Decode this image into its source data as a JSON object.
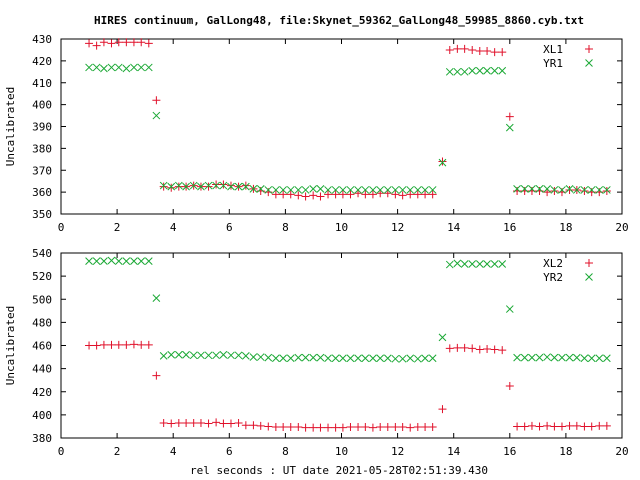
{
  "title": "HIRES continuum, GalLong48, file:Skynet_59362_GalLong48_59985_8860.cyb.txt",
  "xlabel": "rel seconds : UT date 2021-05-28T02:51:39.430",
  "colors": {
    "xl": "#e0102a",
    "yr": "#1aa834"
  },
  "chart_data": [
    {
      "type": "scatter",
      "ylabel": "Uncalibrated",
      "xlim": [
        0,
        20
      ],
      "ylim": [
        350,
        430
      ],
      "xticks": [
        "0",
        "2",
        "4",
        "6",
        "8",
        "10",
        "12",
        "14",
        "16",
        "18",
        "20"
      ],
      "yticks": [
        "350",
        "360",
        "370",
        "380",
        "390",
        "400",
        "410",
        "420",
        "430"
      ],
      "grid": false,
      "legend": "top-right",
      "series": [
        {
          "name": "XL1",
          "marker": "plus",
          "x": [
            1.0,
            1.27,
            1.53,
            1.8,
            2.06,
            2.33,
            2.6,
            2.86,
            3.13,
            3.4,
            3.66,
            3.93,
            4.2,
            4.46,
            4.73,
            4.99,
            5.26,
            5.53,
            5.79,
            6.06,
            6.33,
            6.59,
            6.86,
            7.12,
            7.39,
            7.66,
            7.92,
            8.19,
            8.46,
            8.72,
            8.99,
            9.25,
            9.52,
            9.79,
            10.05,
            10.32,
            10.59,
            10.85,
            11.12,
            11.38,
            11.65,
            11.92,
            12.18,
            12.45,
            12.72,
            12.98,
            13.25,
            13.6,
            13.86,
            14.13,
            14.39,
            14.66,
            14.93,
            15.19,
            15.46,
            15.73,
            16.0,
            16.26,
            16.53,
            16.79,
            17.06,
            17.33,
            17.59,
            17.86,
            18.13,
            18.39,
            18.66,
            18.92,
            19.19,
            19.46
          ],
          "y": [
            428,
            427,
            428.5,
            428,
            428.5,
            428.5,
            428.5,
            428.5,
            428,
            402,
            362.5,
            362,
            362.5,
            362.5,
            363,
            362.5,
            362.5,
            363.5,
            363.5,
            363,
            362.5,
            363,
            361.5,
            360.5,
            360,
            359,
            359,
            359,
            358.5,
            358,
            358.5,
            358,
            359,
            359,
            359,
            359,
            359.5,
            359,
            359,
            359.5,
            359.5,
            359,
            358.5,
            359,
            359,
            359,
            359,
            374,
            425,
            425.5,
            425.5,
            425,
            424.5,
            424.5,
            424,
            424,
            394.5,
            360.5,
            360.5,
            360.5,
            360.5,
            360,
            360.5,
            360,
            361,
            361,
            360.5,
            360,
            360,
            360.5
          ]
        },
        {
          "name": "YR1",
          "marker": "cross",
          "x": [
            1.0,
            1.27,
            1.53,
            1.8,
            2.06,
            2.33,
            2.6,
            2.86,
            3.13,
            3.4,
            3.66,
            3.93,
            4.2,
            4.46,
            4.73,
            4.99,
            5.26,
            5.53,
            5.79,
            6.06,
            6.33,
            6.59,
            6.86,
            7.12,
            7.39,
            7.66,
            7.92,
            8.19,
            8.46,
            8.72,
            8.99,
            9.25,
            9.52,
            9.79,
            10.05,
            10.32,
            10.59,
            10.85,
            11.12,
            11.38,
            11.65,
            11.92,
            12.18,
            12.45,
            12.72,
            12.98,
            13.25,
            13.6,
            13.86,
            14.13,
            14.39,
            14.66,
            14.93,
            15.19,
            15.46,
            15.73,
            16.0,
            16.26,
            16.53,
            16.79,
            17.06,
            17.33,
            17.59,
            17.86,
            18.13,
            18.39,
            18.66,
            18.92,
            19.19,
            19.46
          ],
          "y": [
            417,
            417,
            416.5,
            417,
            417,
            416.5,
            417,
            417,
            417,
            395,
            363,
            362.5,
            363,
            362.5,
            363,
            362.5,
            363,
            363,
            363,
            362.5,
            362.5,
            362.5,
            361.5,
            361.5,
            361,
            361,
            361,
            361,
            361,
            361,
            361.5,
            361.5,
            361,
            361,
            361,
            361,
            361,
            361,
            361,
            361,
            361,
            361,
            361,
            361,
            361,
            361,
            361,
            373.5,
            415,
            415,
            415,
            415.5,
            415.5,
            415.5,
            415.5,
            415.5,
            389.5,
            361.5,
            361.5,
            361.5,
            361.5,
            361.5,
            361,
            361,
            361.5,
            361,
            361,
            361,
            361,
            361
          ]
        }
      ]
    },
    {
      "type": "scatter",
      "ylabel": "Uncalibrated",
      "xlim": [
        0,
        20
      ],
      "ylim": [
        380,
        540
      ],
      "xticks": [
        "0",
        "2",
        "4",
        "6",
        "8",
        "10",
        "12",
        "14",
        "16",
        "18",
        "20"
      ],
      "yticks": [
        "380",
        "400",
        "420",
        "440",
        "460",
        "480",
        "500",
        "520",
        "540"
      ],
      "grid": false,
      "legend": "top-right",
      "series": [
        {
          "name": "XL2",
          "marker": "plus",
          "x": [
            1.0,
            1.27,
            1.53,
            1.8,
            2.06,
            2.33,
            2.6,
            2.86,
            3.13,
            3.4,
            3.66,
            3.93,
            4.2,
            4.46,
            4.73,
            4.99,
            5.26,
            5.53,
            5.79,
            6.06,
            6.33,
            6.59,
            6.86,
            7.12,
            7.39,
            7.66,
            7.92,
            8.19,
            8.46,
            8.72,
            8.99,
            9.25,
            9.52,
            9.79,
            10.05,
            10.32,
            10.59,
            10.85,
            11.12,
            11.38,
            11.65,
            11.92,
            12.18,
            12.45,
            12.72,
            12.98,
            13.25,
            13.6,
            13.86,
            14.13,
            14.39,
            14.66,
            14.93,
            15.19,
            15.46,
            15.73,
            16.0,
            16.26,
            16.53,
            16.79,
            17.06,
            17.33,
            17.59,
            17.86,
            18.13,
            18.39,
            18.66,
            18.92,
            19.19,
            19.46
          ],
          "y": [
            460,
            460,
            460.5,
            460.5,
            460.5,
            460.5,
            461,
            460.5,
            460.5,
            434,
            393,
            392.5,
            393,
            393,
            393,
            393,
            392.5,
            393.5,
            392.5,
            392.5,
            393,
            391,
            391,
            390.5,
            390,
            389.5,
            389.5,
            389.5,
            389.5,
            389,
            389,
            389,
            389,
            389,
            389,
            389.5,
            389.5,
            389.5,
            389,
            389.5,
            389.5,
            389.5,
            389.5,
            389,
            389.5,
            389.5,
            389.5,
            405,
            457.5,
            458,
            458,
            457.5,
            456.5,
            457,
            456.5,
            456,
            425,
            390,
            390,
            390.5,
            390,
            390.5,
            390,
            390,
            390.5,
            390.5,
            390,
            390,
            390.5,
            390.5
          ]
        },
        {
          "name": "YR2",
          "marker": "cross",
          "x": [
            1.0,
            1.27,
            1.53,
            1.8,
            2.06,
            2.33,
            2.6,
            2.86,
            3.13,
            3.4,
            3.66,
            3.93,
            4.2,
            4.46,
            4.73,
            4.99,
            5.26,
            5.53,
            5.79,
            6.06,
            6.33,
            6.59,
            6.86,
            7.12,
            7.39,
            7.66,
            7.92,
            8.19,
            8.46,
            8.72,
            8.99,
            9.25,
            9.52,
            9.79,
            10.05,
            10.32,
            10.59,
            10.85,
            11.12,
            11.38,
            11.65,
            11.92,
            12.18,
            12.45,
            12.72,
            12.98,
            13.25,
            13.6,
            13.86,
            14.13,
            14.39,
            14.66,
            14.93,
            15.19,
            15.46,
            15.73,
            16.0,
            16.26,
            16.53,
            16.79,
            17.06,
            17.33,
            17.59,
            17.86,
            18.13,
            18.39,
            18.66,
            18.92,
            19.19,
            19.46
          ],
          "y": [
            533,
            533,
            533,
            533.5,
            533,
            533,
            533,
            533,
            533,
            501,
            451,
            452,
            452,
            452,
            451.5,
            451.5,
            451.5,
            451.5,
            452,
            451.5,
            451.5,
            451,
            450,
            450,
            449.5,
            449,
            449,
            449,
            449.5,
            449.5,
            449.5,
            449.5,
            449,
            449,
            449,
            449,
            449,
            449,
            449,
            449,
            449,
            448.5,
            448.5,
            449,
            448.5,
            449,
            449,
            467,
            530,
            531,
            530.5,
            530.5,
            530.5,
            530.5,
            530.5,
            530.5,
            491.5,
            449.5,
            449.5,
            449.5,
            449.5,
            450,
            449.5,
            449.5,
            449.5,
            449.5,
            449,
            449,
            449,
            449
          ]
        }
      ]
    }
  ]
}
